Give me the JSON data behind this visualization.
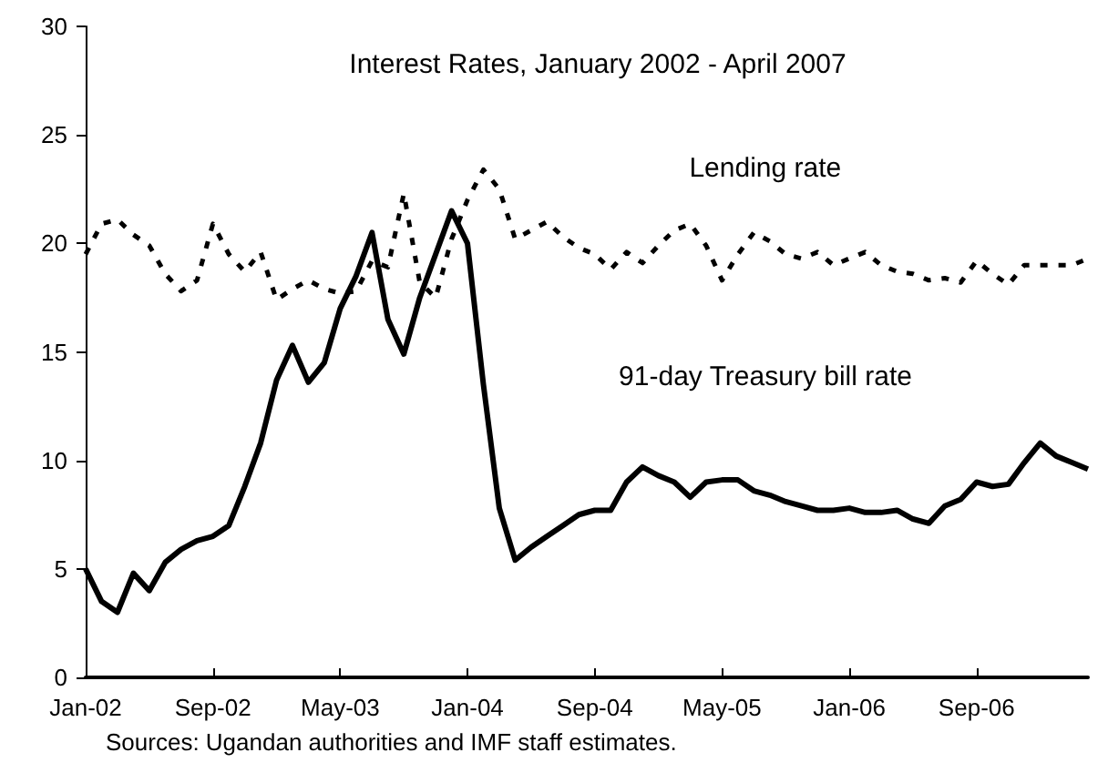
{
  "chart_data": {
    "type": "line",
    "title": "Interest Rates, January 2002 - April 2007",
    "categories": [
      "Jan-02",
      null,
      null,
      null,
      null,
      null,
      null,
      null,
      "Sep-02",
      null,
      null,
      null,
      null,
      null,
      null,
      null,
      "May-03",
      null,
      null,
      null,
      null,
      null,
      null,
      null,
      "Jan-04",
      null,
      null,
      null,
      null,
      null,
      null,
      null,
      "Sep-04",
      null,
      null,
      null,
      null,
      null,
      null,
      null,
      "May-05",
      null,
      null,
      null,
      null,
      null,
      null,
      null,
      "Jan-06",
      null,
      null,
      null,
      null,
      null,
      null,
      null,
      "Sep-06",
      null,
      null,
      null,
      null,
      null,
      null,
      null
    ],
    "series": [
      {
        "name": "Lending rate",
        "color": "#000000",
        "line_style": "dashed",
        "values": [
          19.5,
          20.9,
          21.1,
          20.4,
          19.9,
          18.6,
          17.8,
          18.3,
          20.9,
          19.5,
          18.7,
          19.6,
          17.4,
          17.9,
          18.3,
          17.9,
          17.7,
          17.8,
          19.2,
          18.9,
          22.3,
          18.2,
          17.5,
          20.2,
          22.0,
          23.4,
          22.5,
          20.2,
          20.6,
          21.0,
          20.3,
          19.8,
          19.5,
          18.8,
          19.6,
          19.1,
          19.9,
          20.6,
          20.9,
          19.9,
          18.3,
          19.5,
          20.5,
          20.1,
          19.5,
          19.3,
          19.6,
          19.0,
          19.3,
          19.6,
          19.0,
          18.7,
          18.6,
          18.3,
          18.4,
          18.2,
          19.2,
          18.6,
          18.1,
          19.0,
          19.0,
          19.0,
          19.0,
          19.3
        ]
      },
      {
        "name": "91-day Treasury bill rate",
        "color": "#000000",
        "line_style": "solid",
        "values": [
          5.0,
          3.5,
          3.0,
          4.8,
          4.0,
          5.3,
          5.9,
          6.3,
          6.5,
          7.0,
          8.8,
          10.8,
          13.7,
          15.3,
          13.6,
          14.5,
          17.0,
          18.5,
          20.5,
          16.5,
          14.9,
          17.5,
          19.5,
          21.5,
          20.0,
          13.5,
          7.8,
          5.4,
          6.0,
          6.5,
          7.0,
          7.5,
          7.7,
          7.7,
          9.0,
          9.7,
          9.3,
          9.0,
          8.3,
          9.0,
          9.1,
          9.1,
          8.6,
          8.4,
          8.1,
          7.9,
          7.7,
          7.7,
          7.8,
          7.6,
          7.6,
          7.7,
          7.3,
          7.1,
          7.9,
          8.2,
          9.0,
          8.8,
          8.9,
          9.9,
          10.8,
          10.2,
          9.9,
          9.6
        ]
      }
    ],
    "ylim": [
      0,
      30
    ],
    "yticks": [
      0,
      5,
      10,
      15,
      20,
      25,
      30
    ],
    "grid": false,
    "marker": "none",
    "annotations": [
      "Sources: Ugandan authorities and IMF staff estimates."
    ]
  }
}
